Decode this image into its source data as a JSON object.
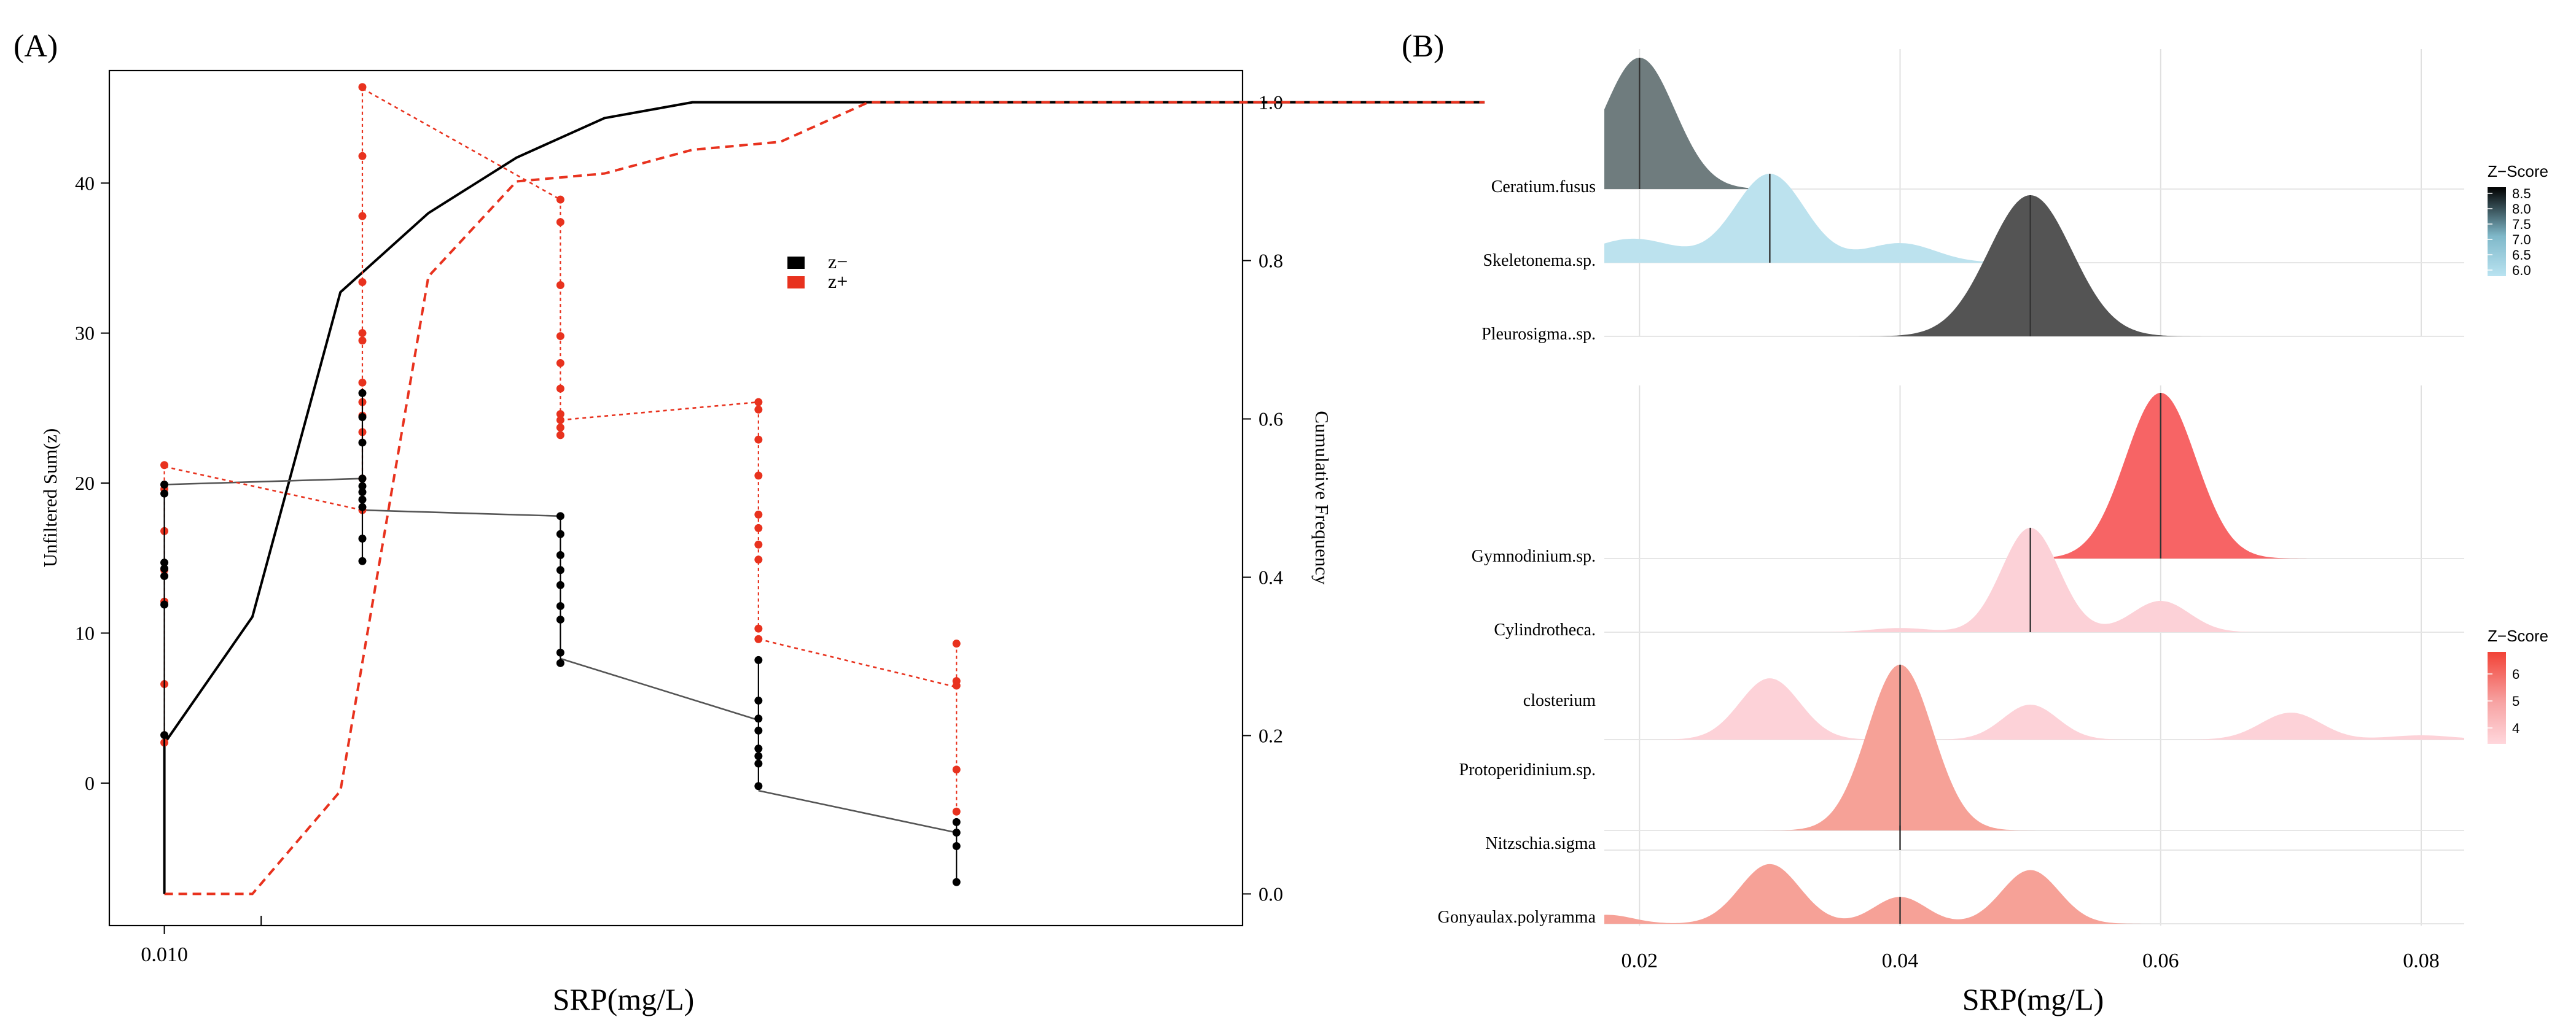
{
  "panel_a": {
    "label": "(A)",
    "chart_data": {
      "type": "line",
      "xlabel": "SRP(mg/L)",
      "ylabel_left": "Unfiltered Sum(z)",
      "ylabel_right": "Cumulative Frequency",
      "x_tick_labels": [
        "0.010"
      ],
      "y_left_ticks": [
        "0",
        "10",
        "20",
        "30",
        "40"
      ],
      "y_right_ticks": [
        "0.0",
        "0.2",
        "0.4",
        "0.6",
        "0.8",
        "1.0"
      ],
      "ylim_left": [
        -9.5,
        47.5
      ],
      "ylim_right": [
        -0.04,
        1.04
      ],
      "legend": [
        {
          "label": "z−",
          "color": "#000000"
        },
        {
          "label": "z+",
          "color": "#e8321e"
        }
      ],
      "cumulative_z_minus": {
        "x": [
          0.01,
          0.012,
          0.014,
          0.016,
          0.018,
          0.02,
          0.022,
          0.024,
          0.026,
          0.03,
          0.035,
          0.04
        ],
        "y": [
          0.19,
          0.35,
          0.76,
          0.86,
          0.93,
          0.98,
          1.0,
          1.0,
          1.0,
          1.0,
          1.0,
          1.0
        ]
      },
      "cumulative_z_plus": {
        "x": [
          0.01,
          0.012,
          0.014,
          0.016,
          0.018,
          0.02,
          0.022,
          0.024,
          0.026,
          0.03,
          0.035,
          0.04
        ],
        "y": [
          0.0,
          0.0,
          0.13,
          0.78,
          0.9,
          0.91,
          0.94,
          0.95,
          1.0,
          1.0,
          1.0,
          1.0
        ]
      },
      "stacks_z_minus": [
        {
          "x": 0.01,
          "points": [
            3.2,
            11.9,
            13.8,
            14.3,
            14.7,
            19.3,
            19.9
          ]
        },
        {
          "x": 0.0145,
          "points": [
            14.8,
            16.3,
            18.4,
            18.9,
            19.4,
            19.8,
            20.3,
            22.7,
            24.4,
            26.0
          ]
        },
        {
          "x": 0.019,
          "points": [
            8.0,
            8.7,
            10.9,
            11.8,
            13.2,
            14.2,
            15.2,
            16.6,
            17.8
          ]
        },
        {
          "x": 0.0235,
          "points": [
            -0.2,
            1.3,
            1.8,
            2.3,
            3.5,
            4.3,
            5.5,
            8.2
          ]
        },
        {
          "x": 0.028,
          "points": [
            -6.6,
            -4.2,
            -3.3,
            -2.6
          ]
        }
      ],
      "stacks_z_plus": [
        {
          "x": 0.01,
          "points": [
            2.7,
            6.6,
            12.1,
            14.2,
            16.8,
            19.6,
            21.2
          ]
        },
        {
          "x": 0.0145,
          "points": [
            18.2,
            20.3,
            23.4,
            24.5,
            25.4,
            26.7,
            29.5,
            30.0,
            33.4,
            37.8,
            41.8,
            46.4
          ]
        },
        {
          "x": 0.019,
          "points": [
            23.2,
            23.7,
            24.2,
            24.6,
            26.3,
            28.0,
            29.8,
            33.2,
            37.4,
            38.9
          ]
        },
        {
          "x": 0.0235,
          "points": [
            9.6,
            10.3,
            14.9,
            15.9,
            17.0,
            17.9,
            20.5,
            22.9,
            24.9,
            25.4
          ]
        },
        {
          "x": 0.028,
          "points": [
            -1.9,
            0.9,
            6.5,
            6.8,
            9.3
          ]
        }
      ],
      "connector_z_minus": {
        "x": [
          0.01,
          0.0145,
          0.0145,
          0.019,
          0.019,
          0.0235,
          0.0235,
          0.028
        ],
        "y": [
          19.9,
          20.3,
          18.2,
          17.8,
          8.3,
          4.2,
          -0.5,
          -3.3
        ]
      },
      "connector_z_plus": {
        "x": [
          0.01,
          0.0145,
          0.0145,
          0.019,
          0.019,
          0.0235,
          0.0235,
          0.028
        ],
        "y": [
          21.1,
          18.2,
          46.3,
          38.9,
          24.2,
          25.4,
          9.6,
          6.4
        ]
      }
    }
  },
  "panel_b": {
    "label": "(B)",
    "chart_data": {
      "type": "ridgeline",
      "xlabel": "SRP(mg/L)",
      "x_ticks": [
        "0.02",
        "0.04",
        "0.06",
        "0.08"
      ],
      "xlim": [
        0.0173,
        0.0833
      ],
      "group_top": {
        "legend_title": "Z−Score",
        "legend_ticks": [
          "8.5",
          "8.0",
          "7.5",
          "7.0",
          "6.5",
          "6.0"
        ],
        "gradient": [
          "#000000",
          "#7fb8c9",
          "#b9e3f1"
        ],
        "ridges": [
          {
            "name": "Ceratium.fusus",
            "peaks": [
              [
                0.02,
                0.0027,
                1.0
              ]
            ],
            "median": 0.02,
            "height": 0.93,
            "color": "#6f7c7e"
          },
          {
            "name": "Skeletonema.sp.",
            "peaks": [
              [
                0.03,
                0.0027,
                1.0
              ],
              [
                0.0195,
                0.0033,
                0.27
              ],
              [
                0.04,
                0.0027,
                0.22
              ]
            ],
            "median": 0.03,
            "height": 0.63,
            "color": "#bce2ee"
          },
          {
            "name": "Pleurosigma..sp.",
            "peaks": [
              [
                0.05,
                0.0032,
                1.0
              ]
            ],
            "median": 0.05,
            "height": 1.0,
            "color": "#545454"
          }
        ]
      },
      "group_bottom": {
        "legend_title": "Z−Score",
        "legend_ticks": [
          "6",
          "5",
          "4"
        ],
        "gradient": [
          "#f24236",
          "#f7a3a3",
          "#ffd7dc"
        ],
        "ridges": [
          {
            "name": "Gymnodinium.sp.",
            "peaks": [
              [
                0.06,
                0.0027,
                1.0
              ]
            ],
            "median": 0.06,
            "height": 1.0,
            "color": "#f76465"
          },
          {
            "name": "Cylindrotheca.",
            "peaks": [
              [
                0.05,
                0.0022,
                1.0
              ],
              [
                0.06,
                0.0022,
                0.3
              ],
              [
                0.04,
                0.0022,
                0.04
              ]
            ],
            "median": 0.05,
            "height": 0.63,
            "color": "#fcd1d7"
          },
          {
            "name": "closterium",
            "peaks": [
              [
                0.03,
                0.0023,
                1.0
              ],
              [
                0.05,
                0.0021,
                0.57
              ],
              [
                0.07,
                0.0023,
                0.44
              ],
              [
                0.08,
                0.0025,
                0.07
              ]
            ],
            "median": 0.04,
            "height": 0.37,
            "color": "#fdd2d8"
          },
          {
            "name": "Protoperidinium.sp.",
            "peaks": [
              [
                0.04,
                0.0025,
                1.0
              ]
            ],
            "median": 0.04,
            "height": 1.0,
            "color": "#f6a197"
          },
          {
            "name": "Nitzschia.sigma",
            "peaks": [],
            "median": 0.04,
            "height": 0.0,
            "color": "#f6a197"
          },
          {
            "name": "Gonyaulax.polyramma",
            "peaks": [
              [
                0.03,
                0.0023,
                1.0
              ],
              [
                0.04,
                0.002,
                0.45
              ],
              [
                0.05,
                0.0022,
                0.9
              ],
              [
                0.0175,
                0.002,
                0.15
              ]
            ],
            "median": 0.04,
            "height": 0.36,
            "color": "#f6a197"
          }
        ]
      }
    }
  }
}
